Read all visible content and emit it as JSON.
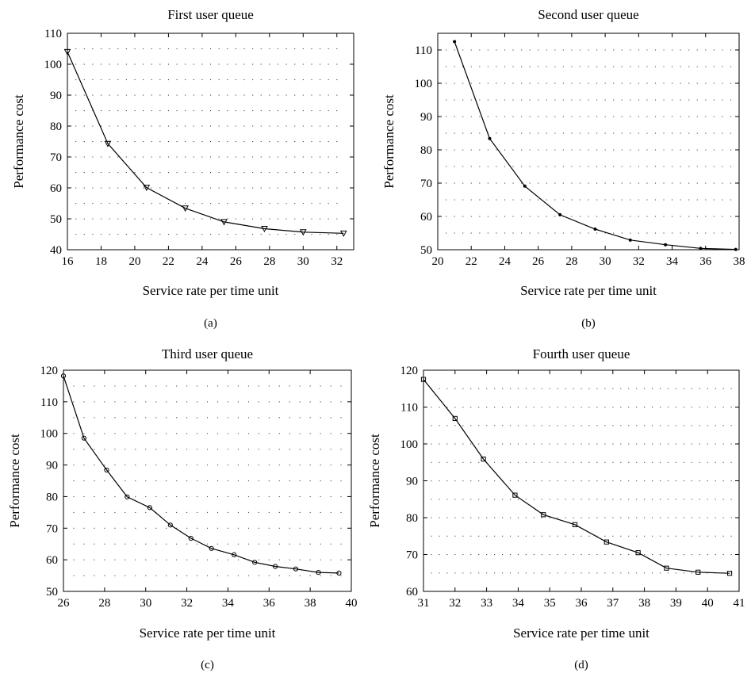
{
  "chart_data": [
    {
      "type": "line",
      "title": "First user queue",
      "xlabel": "Service rate per time unit",
      "ylabel": "Performance cost",
      "caption": "(a)",
      "xlim": [
        16,
        33
      ],
      "ylim": [
        40,
        110
      ],
      "xticks": [
        16,
        18,
        20,
        22,
        24,
        26,
        28,
        30,
        32
      ],
      "yticks": [
        40,
        50,
        60,
        70,
        80,
        90,
        100,
        110
      ],
      "marker": "triangle-down",
      "grid": "dotted",
      "series": [
        {
          "x": [
            16.0,
            18.4,
            20.7,
            23.0,
            25.3,
            27.7,
            30.0,
            32.4
          ],
          "y": [
            104.0,
            74.3,
            60.1,
            53.4,
            49.0,
            46.8,
            45.7,
            45.3
          ]
        }
      ]
    },
    {
      "type": "line",
      "title": "Second user queue",
      "xlabel": "Service rate per time unit",
      "ylabel": "Performance cost",
      "caption": "(b)",
      "xlim": [
        20,
        38
      ],
      "ylim": [
        50,
        115
      ],
      "xticks": [
        20,
        22,
        24,
        26,
        28,
        30,
        32,
        34,
        36,
        38
      ],
      "yticks": [
        50,
        60,
        70,
        80,
        90,
        100,
        110
      ],
      "marker": "dot",
      "grid": "dotted",
      "series": [
        {
          "x": [
            21.0,
            23.1,
            25.2,
            27.3,
            29.4,
            31.5,
            33.6,
            35.7,
            37.8
          ],
          "y": [
            112.5,
            83.4,
            69.1,
            60.5,
            56.2,
            52.9,
            51.5,
            50.4,
            50.1
          ]
        }
      ]
    },
    {
      "type": "line",
      "title": "Third user queue",
      "xlabel": "Service rate per time unit",
      "ylabel": "Performance cost",
      "caption": "(c)",
      "xlim": [
        26,
        40
      ],
      "ylim": [
        50,
        120
      ],
      "xticks": [
        26,
        28,
        30,
        32,
        34,
        36,
        38,
        40
      ],
      "yticks": [
        50,
        60,
        70,
        80,
        90,
        100,
        110,
        120
      ],
      "marker": "circle",
      "grid": "dotted",
      "series": [
        {
          "x": [
            26.0,
            27.0,
            28.1,
            29.1,
            30.2,
            31.2,
            32.2,
            33.2,
            34.3,
            35.3,
            36.3,
            37.3,
            38.4,
            39.4
          ],
          "y": [
            118.2,
            98.5,
            88.4,
            79.9,
            76.5,
            71.0,
            66.8,
            63.6,
            61.6,
            59.2,
            57.9,
            57.1,
            56.0,
            55.8
          ]
        }
      ]
    },
    {
      "type": "line",
      "title": "Fourth user queue",
      "xlabel": "Service rate per time unit",
      "ylabel": "Performance cost",
      "caption": "(d)",
      "xlim": [
        31,
        41
      ],
      "ylim": [
        60,
        120
      ],
      "xticks": [
        31,
        32,
        33,
        34,
        35,
        36,
        37,
        38,
        39,
        40,
        41
      ],
      "yticks": [
        60,
        70,
        80,
        90,
        100,
        110,
        120
      ],
      "marker": "square",
      "grid": "dotted",
      "series": [
        {
          "x": [
            31.0,
            32.0,
            32.9,
            33.9,
            34.8,
            35.8,
            36.8,
            37.8,
            38.7,
            39.7,
            40.7
          ],
          "y": [
            117.5,
            106.9,
            95.9,
            86.1,
            80.8,
            78.1,
            73.4,
            70.5,
            66.3,
            65.2,
            64.9
          ]
        }
      ]
    }
  ]
}
